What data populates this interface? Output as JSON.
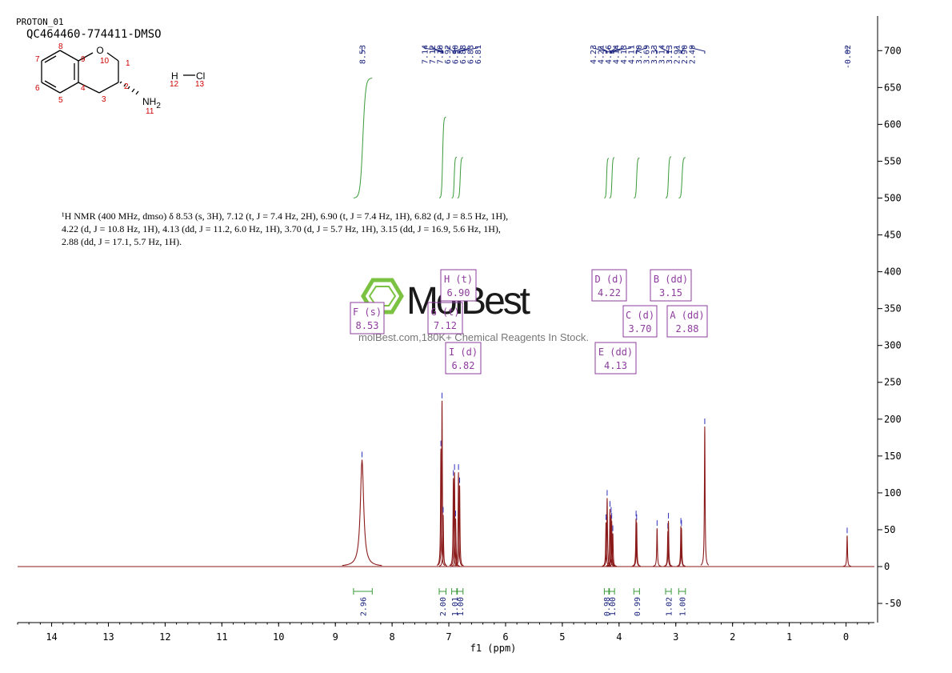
{
  "chart_data": {
    "type": "nmr",
    "title": "PROTON_01",
    "subtitle": "QC464460-774411-DMSO",
    "x_label": "f1 (ppm)",
    "xlim": [
      14.6,
      -0.5
    ],
    "xticks": [
      14,
      13,
      12,
      11,
      10,
      9,
      8,
      7,
      6,
      5,
      4,
      3,
      2,
      1,
      0
    ],
    "ylim": [
      -76,
      747
    ],
    "yticks": [
      -50,
      0,
      50,
      100,
      150,
      200,
      250,
      300,
      350,
      400,
      450,
      500,
      550,
      600,
      650,
      700
    ],
    "color": "#8b1a1a",
    "peaks": {
      "x": [
        8.53,
        7.14,
        7.12,
        {
          "value": 7.1,
          "label": "7.10"
        },
        6.92,
        {
          "value": 6.9,
          "label": "6.90"
        },
        6.88,
        6.83,
        6.81,
        4.23,
        4.21,
        4.16,
        4.14,
        4.13,
        4.11,
        {
          "value": 3.7,
          "label": "3.70"
        },
        3.69,
        3.33,
        3.14,
        3.13,
        2.91,
        {
          "value": 2.9,
          "label": "2.90"
        },
        2.49,
        -0.02
      ],
      "values": [
        145,
        160,
        225,
        70,
        120,
        128,
        65,
        128,
        110,
        60,
        93,
        78,
        70,
        62,
        45,
        65,
        60,
        52,
        48,
        62,
        55,
        52,
        190,
        42
      ]
    },
    "integrals": {
      "ranges": [
        [
          8.68,
          8.35
        ],
        [
          7.17,
          7.05
        ],
        [
          6.95,
          6.86
        ],
        [
          6.85,
          6.75
        ],
        [
          4.26,
          4.18
        ],
        [
          4.17,
          4.08
        ],
        [
          3.74,
          3.64
        ],
        [
          3.18,
          3.08
        ],
        [
          2.95,
          2.83
        ]
      ],
      "values": [
        2.96,
        2.0,
        1.01,
        1.0,
        0.98,
        1.0,
        0.99,
        1.02,
        1.0
      ],
      "value_labels": [
        "2.96",
        "2.00",
        "1.01",
        "1.00",
        "0.98",
        "1.00",
        "0.99",
        "1.02",
        "1.00"
      ]
    },
    "multiplets": [
      {
        "name": "F (s)",
        "shift": "8.53"
      },
      {
        "name": "G (t)",
        "shift": "7.12"
      },
      {
        "name": "H (t)",
        "shift": "6.90"
      },
      {
        "name": "I (d)",
        "shift": "6.82"
      },
      {
        "name": "D (d)",
        "shift": "4.22"
      },
      {
        "name": "E (dd)",
        "shift": "4.13"
      },
      {
        "name": "C (d)",
        "shift": "3.70"
      },
      {
        "name": "B (dd)",
        "shift": "3.15"
      },
      {
        "name": "A (dd)",
        "shift": "2.88"
      }
    ],
    "annotation": "¹H NMR (400 MHz, dmso) δ 8.53 (s, 3H), 7.12 (t, J = 7.4 Hz, 2H), 6.90 (t, J = 7.4 Hz, 1H), 6.82 (d, J = 8.5 Hz, 1H), 4.22 (d, J = 10.8 Hz, 1H), 4.13 (dd, J = 11.2, 6.0 Hz, 1H), 3.70 (d, J = 5.7 Hz, 1H), 3.15 (dd, J = 16.9, 5.6 Hz, 1H), 2.88 (dd, J = 17.1, 5.7 Hz, 1H)."
  },
  "structure": {
    "atoms": [
      "O",
      "NH",
      "2",
      "H",
      "Cl"
    ],
    "numbers": [
      "1",
      "2",
      "3",
      "4",
      "5",
      "6",
      "7",
      "8",
      "9",
      "10",
      "11",
      "12",
      "13"
    ]
  },
  "watermark": {
    "brand": "MolBest",
    "tagline": "molBest.com,180K+ Chemical Reagents In Stock."
  }
}
